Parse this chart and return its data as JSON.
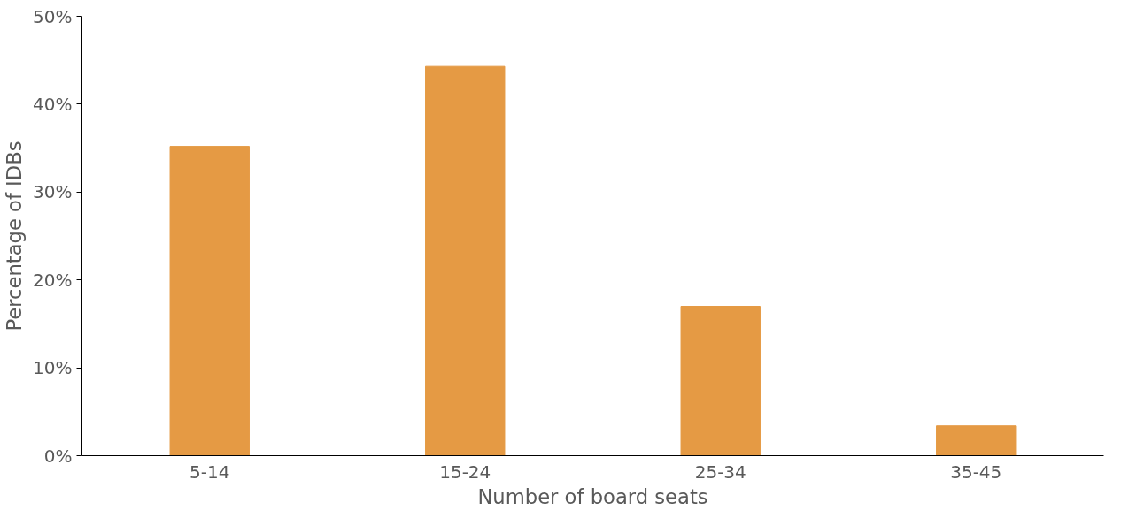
{
  "chart_data": {
    "type": "bar",
    "xlabel": "Number of board seats",
    "ylabel": "Percentage of IDBs",
    "categories": [
      "5-14",
      "15-24",
      "25-34",
      "35-45"
    ],
    "values": [
      35.2,
      44.3,
      17.0,
      3.4
    ],
    "color": "#e59a44",
    "ylim": [
      0,
      50
    ],
    "yticks": [
      {
        "value": 0,
        "label": "0%"
      },
      {
        "value": 10,
        "label": "10%"
      },
      {
        "value": 20,
        "label": "20%"
      },
      {
        "value": 30,
        "label": "30%"
      },
      {
        "value": 40,
        "label": "40%"
      },
      {
        "value": 50,
        "label": "50%"
      }
    ],
    "grid": false
  }
}
